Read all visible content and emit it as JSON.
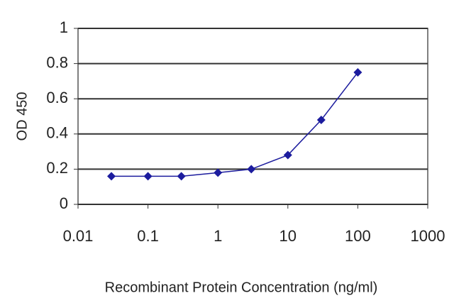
{
  "chart_data": {
    "type": "line",
    "x_label": "Recombinant Protein Concentration (ng/ml)",
    "y_label": "OD 450",
    "x": [
      0.03,
      0.1,
      0.3,
      1,
      3,
      10,
      30,
      100
    ],
    "series": [
      {
        "color": "#1c1c9e",
        "values": [
          0.16,
          0.16,
          0.16,
          0.18,
          0.2,
          0.28,
          0.48,
          0.75
        ]
      }
    ],
    "xscale": "log",
    "xlim": [
      0.01,
      1000
    ],
    "xticks": [
      0.01,
      0.1,
      1,
      10,
      100,
      1000
    ],
    "ylim": [
      0,
      1
    ],
    "yticks": [
      0,
      0.2,
      0.4,
      0.6,
      0.8,
      1
    ],
    "grid": true
  }
}
